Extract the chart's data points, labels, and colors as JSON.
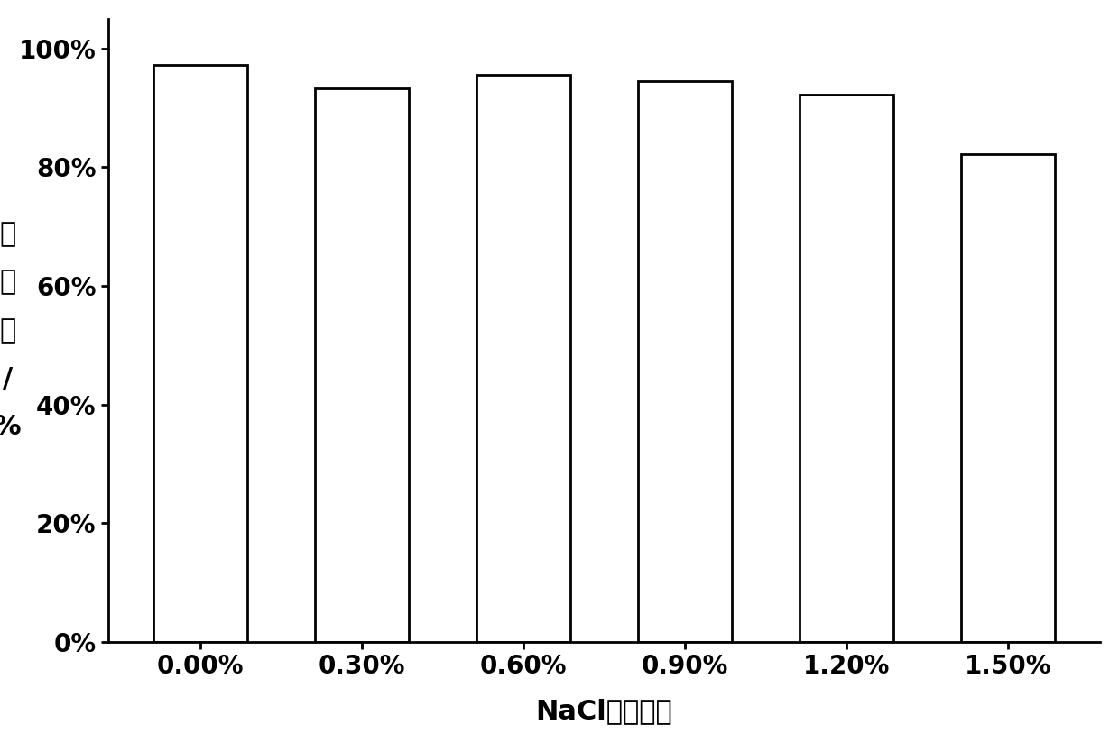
{
  "categories": [
    "0.00%",
    "0.30%",
    "0.60%",
    "0.90%",
    "1.20%",
    "1.50%"
  ],
  "values": [
    0.972,
    0.933,
    0.955,
    0.945,
    0.922,
    0.822
  ],
  "bar_color": "#ffffff",
  "bar_edgecolor": "#000000",
  "bar_linewidth": 2.0,
  "bar_width": 0.58,
  "xlabel": "NaCl溶液浓度",
  "ylabel_chars": [
    "发",
    "芽",
    "率",
    "/",
    "%"
  ],
  "ylabel_fontsize": 22,
  "xlabel_fontsize": 22,
  "tick_fontsize": 20,
  "ylim": [
    0,
    1.05
  ],
  "yticks": [
    0.0,
    0.2,
    0.4,
    0.6,
    0.8,
    1.0
  ],
  "ytick_labels": [
    "0%",
    "20%",
    "40%",
    "60%",
    "80%",
    "100%"
  ],
  "background_color": "#ffffff",
  "figure_width": 12.4,
  "figure_height": 8.24,
  "spine_linewidth": 2.0
}
